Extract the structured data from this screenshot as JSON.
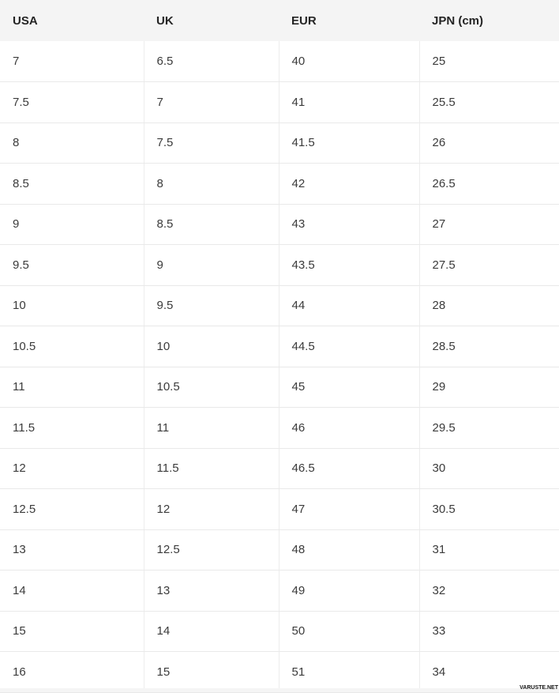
{
  "chart_data": {
    "type": "table",
    "columns": [
      "USA",
      "UK",
      "EUR",
      "JPN (cm)"
    ],
    "rows": [
      [
        "7",
        "6.5",
        "40",
        "25"
      ],
      [
        "7.5",
        "7",
        "41",
        "25.5"
      ],
      [
        "8",
        "7.5",
        "41.5",
        "26"
      ],
      [
        "8.5",
        "8",
        "42",
        "26.5"
      ],
      [
        "9",
        "8.5",
        "43",
        "27"
      ],
      [
        "9.5",
        "9",
        "43.5",
        "27.5"
      ],
      [
        "10",
        "9.5",
        "44",
        "28"
      ],
      [
        "10.5",
        "10",
        "44.5",
        "28.5"
      ],
      [
        "11",
        "10.5",
        "45",
        "29"
      ],
      [
        "11.5",
        "11",
        "46",
        "29.5"
      ],
      [
        "12",
        "11.5",
        "46.5",
        "30"
      ],
      [
        "12.5",
        "12",
        "47",
        "30.5"
      ],
      [
        "13",
        "12.5",
        "48",
        "31"
      ],
      [
        "14",
        "13",
        "49",
        "32"
      ],
      [
        "15",
        "14",
        "50",
        "33"
      ],
      [
        "16",
        "15",
        "51",
        "34"
      ]
    ]
  },
  "watermark": {
    "label": "VARUSTE.NET"
  },
  "colors": {
    "header_background": "#f4f4f4",
    "header_text": "#242424",
    "body_text": "#3b3b3b",
    "row_border": "#e9e9e9",
    "column_border": "#ededed",
    "bottom_strip": "#f5f5f5",
    "watermark_text": "#141414"
  }
}
